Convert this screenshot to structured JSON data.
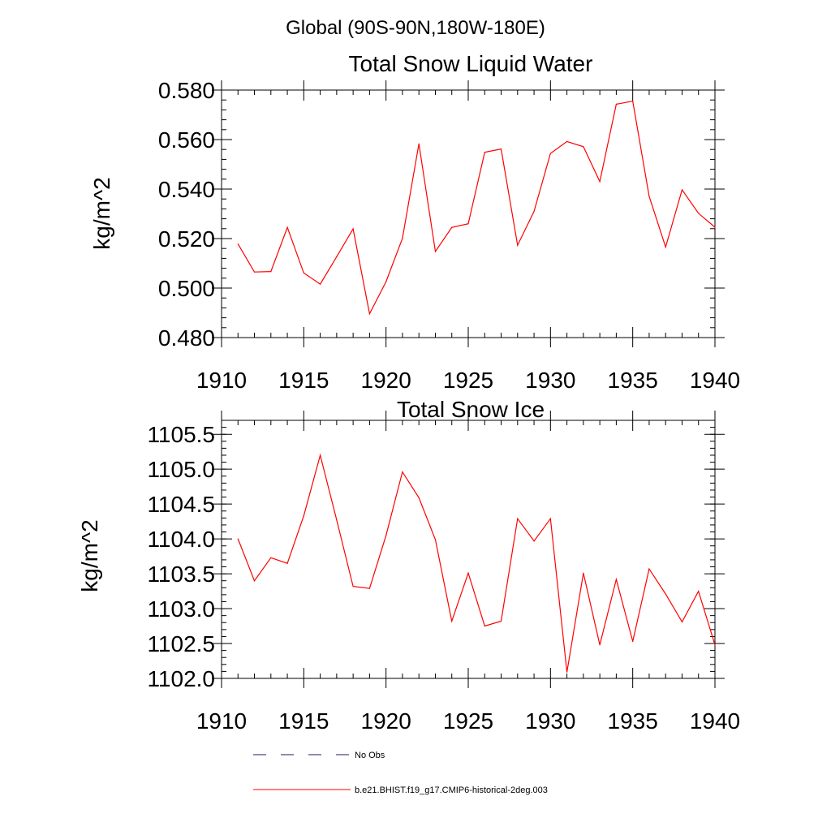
{
  "header": {
    "region_label": "Global (90S-90N,180W-180E)"
  },
  "chart_data": [
    {
      "type": "line",
      "title": "Total Snow Liquid Water",
      "xlabel": "",
      "ylabel": "kg/m^2",
      "xlim": [
        1910,
        1940
      ],
      "ylim": [
        0.48,
        0.58
      ],
      "xticks": [
        1910,
        1915,
        1920,
        1925,
        1930,
        1935,
        1940
      ],
      "xtick_labels": [
        "1910",
        "1915",
        "1920",
        "1925",
        "1930",
        "1935",
        "1940"
      ],
      "yticks": [
        0.48,
        0.5,
        0.52,
        0.54,
        0.56,
        0.58
      ],
      "ytick_labels": [
        "0.480",
        "0.500",
        "0.520",
        "0.540",
        "0.560",
        "0.580"
      ],
      "grid": false,
      "series": [
        {
          "name": "b.e21.BHIST.f19_g17.CMIP6-historical-2deg.003",
          "color": "#ff0000",
          "x": [
            1911,
            1912,
            1913,
            1914,
            1915,
            1916,
            1917,
            1918,
            1919,
            1920,
            1921,
            1922,
            1923,
            1924,
            1925,
            1926,
            1927,
            1928,
            1929,
            1930,
            1931,
            1932,
            1933,
            1934,
            1935,
            1936,
            1937,
            1938,
            1939,
            1940
          ],
          "values": [
            0.5178,
            0.5065,
            0.5067,
            0.5245,
            0.5061,
            0.5016,
            0.5127,
            0.5239,
            0.4896,
            0.5026,
            0.5201,
            0.5583,
            0.5148,
            0.5245,
            0.526,
            0.5549,
            0.5562,
            0.5173,
            0.531,
            0.5544,
            0.5592,
            0.5571,
            0.543,
            0.5743,
            0.5755,
            0.5371,
            0.5166,
            0.5397,
            0.5302,
            0.5246
          ]
        }
      ]
    },
    {
      "type": "line",
      "title": "Total Snow Ice",
      "xlabel": "",
      "ylabel": "kg/m^2",
      "xlim": [
        1910,
        1940
      ],
      "ylim": [
        1102.0,
        1105.7
      ],
      "xticks": [
        1910,
        1915,
        1920,
        1925,
        1930,
        1935,
        1940
      ],
      "xtick_labels": [
        "1910",
        "1915",
        "1920",
        "1925",
        "1930",
        "1935",
        "1940"
      ],
      "yticks": [
        1102.0,
        1102.5,
        1103.0,
        1103.5,
        1104.0,
        1104.5,
        1105.0,
        1105.5
      ],
      "ytick_labels": [
        "1102.0",
        "1102.5",
        "1103.0",
        "1103.5",
        "1104.0",
        "1104.5",
        "1105.0",
        "1105.5"
      ],
      "grid": false,
      "series": [
        {
          "name": "b.e21.BHIST.f19_g17.CMIP6-historical-2deg.003",
          "color": "#ff0000",
          "x": [
            1911,
            1912,
            1913,
            1914,
            1915,
            1916,
            1917,
            1918,
            1919,
            1920,
            1921,
            1922,
            1923,
            1924,
            1925,
            1926,
            1927,
            1928,
            1929,
            1930,
            1931,
            1932,
            1933,
            1934,
            1935,
            1936,
            1937,
            1938,
            1939,
            1940
          ],
          "values": [
            1104.0,
            1103.4,
            1103.73,
            1103.65,
            1104.33,
            1105.2,
            1104.27,
            1103.32,
            1103.29,
            1104.05,
            1104.96,
            1104.59,
            1103.99,
            1102.82,
            1103.51,
            1102.75,
            1102.82,
            1104.29,
            1103.97,
            1104.29,
            1102.09,
            1103.51,
            1102.48,
            1103.42,
            1102.53,
            1103.57,
            1103.21,
            1102.81,
            1103.25,
            1102.48
          ]
        }
      ]
    }
  ],
  "legend": {
    "placement": "bottom-center",
    "items": [
      {
        "label": "No Obs",
        "color": "#1a1a66",
        "style": "dashed"
      },
      {
        "label": "b.e21.BHIST.f19_g17.CMIP6-historical-2deg.003",
        "color": "#ff0000",
        "style": "solid"
      }
    ]
  }
}
